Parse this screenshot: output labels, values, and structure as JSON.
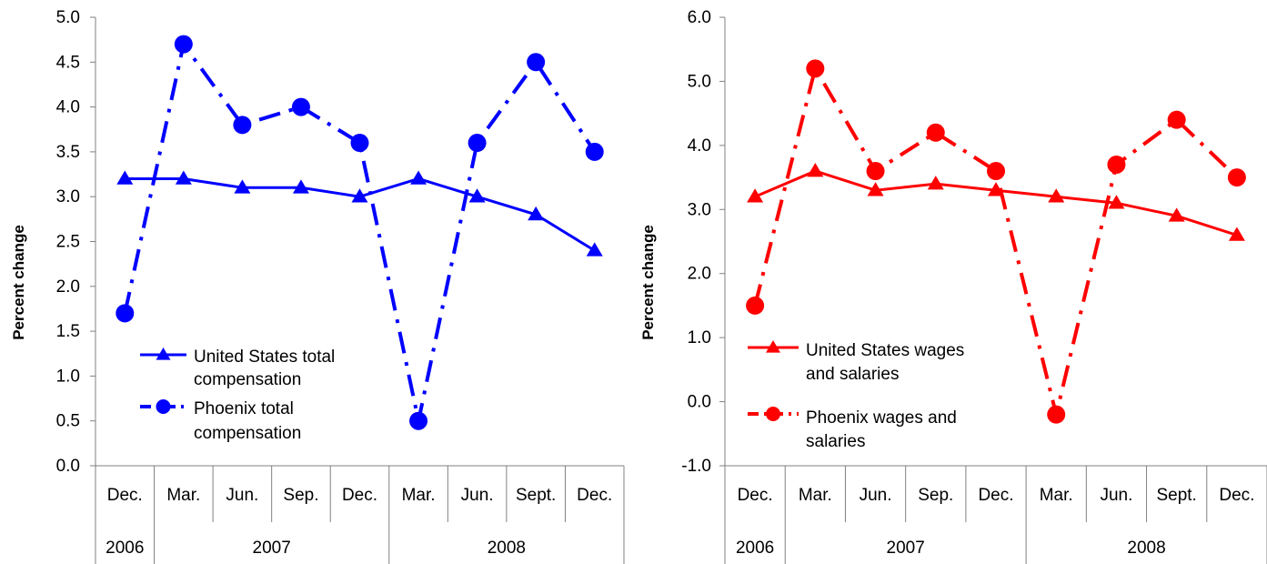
{
  "chart_data": [
    {
      "type": "line",
      "title": "",
      "ylabel": "Percent change",
      "xlabel": "",
      "ylim": [
        0.0,
        5.0
      ],
      "y_ticks": [
        "0.0",
        "0.5",
        "1.0",
        "1.5",
        "2.0",
        "2.5",
        "3.0",
        "3.5",
        "4.0",
        "4.5",
        "5.0"
      ],
      "categories": [
        "Dec.",
        "Mar.",
        "Jun.",
        "Sep.",
        "Dec.",
        "Mar.",
        "Jun.",
        "Sept.",
        "Dec."
      ],
      "year_groups": [
        {
          "label": "2006",
          "span": [
            0,
            0
          ]
        },
        {
          "label": "2007",
          "span": [
            1,
            4
          ]
        },
        {
          "label": "2008",
          "span": [
            5,
            8
          ]
        }
      ],
      "color": "#0000ff",
      "legend_position": "bottom-left",
      "series": [
        {
          "name": "United States total compensation",
          "values": [
            3.2,
            3.2,
            3.1,
            3.1,
            3.0,
            3.2,
            3.0,
            2.8,
            2.4
          ],
          "marker": "triangle",
          "line": "solid"
        },
        {
          "name": "Phoenix total compensation",
          "values": [
            1.7,
            4.7,
            3.8,
            4.0,
            3.6,
            0.5,
            3.6,
            4.5,
            3.5
          ],
          "marker": "circle",
          "line": "dashdot"
        }
      ],
      "legend": {
        "us_line1": "United States total",
        "us_line2": "compensation",
        "phx_line1": "Phoenix total",
        "phx_line2": "compensation"
      }
    },
    {
      "type": "line",
      "title": "",
      "ylabel": "Percent change",
      "xlabel": "",
      "ylim": [
        -1.0,
        6.0
      ],
      "y_ticks": [
        "-1.0",
        "0.0",
        "1.0",
        "2.0",
        "3.0",
        "4.0",
        "5.0",
        "6.0"
      ],
      "categories": [
        "Dec.",
        "Mar.",
        "Jun.",
        "Sep.",
        "Dec.",
        "Mar.",
        "Jun.",
        "Sept.",
        "Dec."
      ],
      "year_groups": [
        {
          "label": "2006",
          "span": [
            0,
            0
          ]
        },
        {
          "label": "2007",
          "span": [
            1,
            4
          ]
        },
        {
          "label": "2008",
          "span": [
            5,
            8
          ]
        }
      ],
      "color": "#ff0000",
      "legend_position": "bottom-left",
      "series": [
        {
          "name": "United States wages and salaries",
          "values": [
            3.2,
            3.6,
            3.3,
            3.4,
            3.3,
            3.2,
            3.1,
            2.9,
            2.6
          ],
          "marker": "triangle",
          "line": "solid"
        },
        {
          "name": "Phoenix wages and salaries",
          "values": [
            1.5,
            5.2,
            3.6,
            4.2,
            3.6,
            -0.2,
            3.7,
            4.4,
            3.5
          ],
          "marker": "circle",
          "line": "dashdot"
        }
      ],
      "legend": {
        "us_line1": "United States wages",
        "us_line2": "and salaries",
        "phx_line1": "Phoenix  wages and",
        "phx_line2": "salaries"
      }
    }
  ]
}
